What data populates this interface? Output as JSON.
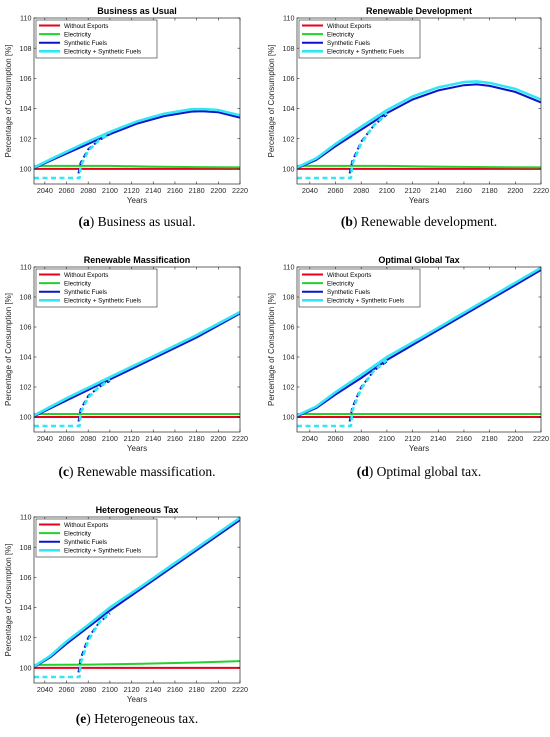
{
  "legend_labels": [
    "Without Exports",
    "Electricity",
    "Synthetic Fuels",
    "Electricity + Synthetic Fuels"
  ],
  "series_colors": {
    "Without Exports": "#e8001c",
    "Electricity": "#22d12e",
    "Synthetic Fuels": "#0a14c8",
    "Electricity + Synthetic Fuels": "#33e6f5"
  },
  "chart_data": [
    {
      "type": "line",
      "title": "Business as Usual",
      "xlabel": "Years",
      "ylabel": "Percentage of Consumption [%]",
      "xlim": [
        2030,
        2220
      ],
      "ylim": [
        99,
        110
      ],
      "xticks": [
        2040,
        2060,
        2080,
        2100,
        2120,
        2140,
        2160,
        2180,
        2200,
        2220
      ],
      "yticks": [
        100,
        102,
        104,
        106,
        108,
        110
      ],
      "caption_tag": "(a)",
      "caption_text": "Business as usual.",
      "series": [
        {
          "name": "Without Exports",
          "style": "solid",
          "x": [
            2030,
            2220
          ],
          "y": [
            100.0,
            100.0
          ]
        },
        {
          "name": "Electricity",
          "style": "solid",
          "x": [
            2030,
            2060,
            2100,
            2140,
            2180,
            2220
          ],
          "y": [
            100.2,
            100.2,
            100.2,
            100.15,
            100.12,
            100.1
          ]
        },
        {
          "name": "Synthetic Fuels",
          "style": "solid",
          "x": [
            2030,
            2050,
            2075,
            2100,
            2125,
            2150,
            2175,
            2185,
            2200,
            2220
          ],
          "y": [
            100.05,
            100.7,
            101.5,
            102.3,
            103.0,
            103.5,
            103.8,
            103.82,
            103.75,
            103.4
          ]
        },
        {
          "name": "Synthetic Fuels",
          "style": "dashed",
          "x": [
            2071,
            2073,
            2080,
            2090,
            2100
          ],
          "y": [
            99.7,
            100.4,
            101.3,
            101.9,
            102.3
          ]
        },
        {
          "name": "Electricity + Synthetic Fuels",
          "style": "solid",
          "x": [
            2030,
            2050,
            2075,
            2100,
            2125,
            2150,
            2175,
            2185,
            2200,
            2220
          ],
          "y": [
            100.1,
            100.8,
            101.65,
            102.45,
            103.15,
            103.65,
            103.95,
            103.97,
            103.9,
            103.55
          ]
        },
        {
          "name": "Electricity + Synthetic Fuels",
          "style": "dashed",
          "x": [
            2030,
            2072,
            2073,
            2080,
            2090,
            2100
          ],
          "y": [
            99.4,
            99.4,
            100.2,
            101.2,
            101.9,
            102.4
          ]
        }
      ]
    },
    {
      "type": "line",
      "title": "Renewable Development",
      "xlabel": "Years",
      "ylabel": "Percentage of Consumption [%]",
      "xlim": [
        2030,
        2220
      ],
      "ylim": [
        99,
        110
      ],
      "xticks": [
        2040,
        2060,
        2080,
        2100,
        2120,
        2140,
        2160,
        2180,
        2200,
        2220
      ],
      "yticks": [
        100,
        102,
        104,
        106,
        108,
        110
      ],
      "caption_tag": "(b)",
      "caption_text": "Renewable development.",
      "series": [
        {
          "name": "Without Exports",
          "style": "solid",
          "x": [
            2030,
            2220
          ],
          "y": [
            100.0,
            100.0
          ]
        },
        {
          "name": "Electricity",
          "style": "solid",
          "x": [
            2030,
            2060,
            2100,
            2140,
            2180,
            2220
          ],
          "y": [
            100.2,
            100.2,
            100.2,
            100.15,
            100.12,
            100.1
          ]
        },
        {
          "name": "Synthetic Fuels",
          "style": "solid",
          "x": [
            2030,
            2045,
            2060,
            2080,
            2100,
            2120,
            2140,
            2160,
            2170,
            2180,
            2200,
            2220
          ],
          "y": [
            100.05,
            100.6,
            101.5,
            102.6,
            103.7,
            104.6,
            105.2,
            105.55,
            105.6,
            105.5,
            105.1,
            104.4
          ]
        },
        {
          "name": "Synthetic Fuels",
          "style": "dashed",
          "x": [
            2071,
            2073,
            2080,
            2090,
            2100
          ],
          "y": [
            99.7,
            100.5,
            101.8,
            102.9,
            103.6
          ]
        },
        {
          "name": "Electricity + Synthetic Fuels",
          "style": "solid",
          "x": [
            2030,
            2045,
            2060,
            2080,
            2100,
            2120,
            2140,
            2160,
            2170,
            2180,
            2200,
            2220
          ],
          "y": [
            100.1,
            100.7,
            101.65,
            102.8,
            103.9,
            104.8,
            105.4,
            105.75,
            105.8,
            105.7,
            105.3,
            104.6
          ]
        },
        {
          "name": "Electricity + Synthetic Fuels",
          "style": "dashed",
          "x": [
            2030,
            2072,
            2073,
            2080,
            2090,
            2100
          ],
          "y": [
            99.4,
            99.4,
            100.3,
            101.7,
            102.9,
            103.7
          ]
        }
      ]
    },
    {
      "type": "line",
      "title": "Renewable Massification",
      "xlabel": "Years",
      "ylabel": "Percentage of Consumption [%]",
      "xlim": [
        2030,
        2220
      ],
      "ylim": [
        99,
        110
      ],
      "xticks": [
        2040,
        2060,
        2080,
        2100,
        2120,
        2140,
        2160,
        2180,
        2200,
        2220
      ],
      "yticks": [
        100,
        102,
        104,
        106,
        108,
        110
      ],
      "caption_tag": "(c)",
      "caption_text": "Renewable massification.",
      "series": [
        {
          "name": "Without Exports",
          "style": "solid",
          "x": [
            2030,
            2220
          ],
          "y": [
            100.0,
            100.0
          ]
        },
        {
          "name": "Electricity",
          "style": "solid",
          "x": [
            2030,
            2060,
            2100,
            2140,
            2180,
            2220
          ],
          "y": [
            100.2,
            100.2,
            100.2,
            100.2,
            100.2,
            100.2
          ]
        },
        {
          "name": "Synthetic Fuels",
          "style": "solid",
          "x": [
            2030,
            2060,
            2100,
            2140,
            2180,
            2220
          ],
          "y": [
            100.05,
            101.1,
            102.5,
            103.9,
            105.3,
            106.9
          ]
        },
        {
          "name": "Synthetic Fuels",
          "style": "dashed",
          "x": [
            2071,
            2073,
            2080,
            2090,
            2100
          ],
          "y": [
            99.7,
            100.5,
            101.4,
            102.0,
            102.4
          ]
        },
        {
          "name": "Electricity + Synthetic Fuels",
          "style": "solid",
          "x": [
            2030,
            2060,
            2100,
            2140,
            2180,
            2220
          ],
          "y": [
            100.1,
            101.25,
            102.65,
            104.05,
            105.45,
            107.0
          ]
        },
        {
          "name": "Electricity + Synthetic Fuels",
          "style": "dashed",
          "x": [
            2030,
            2072,
            2073,
            2080,
            2090,
            2100
          ],
          "y": [
            99.4,
            99.4,
            100.3,
            101.3,
            102.0,
            102.5
          ]
        }
      ]
    },
    {
      "type": "line",
      "title": "Optimal Global Tax",
      "xlabel": "Years",
      "ylabel": "Percentage of Consumption [%]",
      "xlim": [
        2030,
        2220
      ],
      "ylim": [
        99,
        110
      ],
      "xticks": [
        2040,
        2060,
        2080,
        2100,
        2120,
        2140,
        2160,
        2180,
        2200,
        2220
      ],
      "yticks": [
        100,
        102,
        104,
        106,
        108,
        110
      ],
      "caption_tag": "(d)",
      "caption_text": "Optimal global tax.",
      "series": [
        {
          "name": "Without Exports",
          "style": "solid",
          "x": [
            2030,
            2220
          ],
          "y": [
            100.0,
            100.0
          ]
        },
        {
          "name": "Electricity",
          "style": "solid",
          "x": [
            2030,
            2060,
            2100,
            2140,
            2180,
            2220
          ],
          "y": [
            100.2,
            100.2,
            100.2,
            100.2,
            100.2,
            100.2
          ]
        },
        {
          "name": "Synthetic Fuels",
          "style": "solid",
          "x": [
            2030,
            2045,
            2060,
            2080,
            2100,
            2130,
            2160,
            2190,
            2220
          ],
          "y": [
            100.05,
            100.6,
            101.5,
            102.6,
            103.8,
            105.3,
            106.8,
            108.3,
            109.8
          ]
        },
        {
          "name": "Synthetic Fuels",
          "style": "dashed",
          "x": [
            2071,
            2073,
            2080,
            2090,
            2100
          ],
          "y": [
            99.7,
            100.6,
            102.0,
            103.1,
            103.7
          ]
        },
        {
          "name": "Electricity + Synthetic Fuels",
          "style": "solid",
          "x": [
            2030,
            2045,
            2060,
            2080,
            2100,
            2130,
            2160,
            2190,
            2220
          ],
          "y": [
            100.1,
            100.7,
            101.65,
            102.8,
            104.0,
            105.45,
            106.95,
            108.45,
            109.95
          ]
        },
        {
          "name": "Electricity + Synthetic Fuels",
          "style": "dashed",
          "x": [
            2030,
            2072,
            2073,
            2080,
            2090,
            2100
          ],
          "y": [
            99.4,
            99.4,
            100.4,
            101.9,
            103.1,
            103.8
          ]
        }
      ]
    },
    {
      "type": "line",
      "title": "Heterogeneous Tax",
      "xlabel": "Years",
      "ylabel": "Percentage of Consumption [%]",
      "xlim": [
        2030,
        2220
      ],
      "ylim": [
        99,
        110
      ],
      "xticks": [
        2040,
        2060,
        2080,
        2100,
        2120,
        2140,
        2160,
        2180,
        2200,
        2220
      ],
      "yticks": [
        100,
        102,
        104,
        106,
        108,
        110
      ],
      "caption_tag": "(e)",
      "caption_text": "Heterogeneous tax.",
      "series": [
        {
          "name": "Without Exports",
          "style": "solid",
          "x": [
            2030,
            2220
          ],
          "y": [
            100.0,
            100.0
          ]
        },
        {
          "name": "Electricity",
          "style": "solid",
          "x": [
            2030,
            2080,
            2130,
            2180,
            2220
          ],
          "y": [
            100.2,
            100.22,
            100.28,
            100.36,
            100.45
          ]
        },
        {
          "name": "Synthetic Fuels",
          "style": "solid",
          "x": [
            2030,
            2045,
            2060,
            2080,
            2100,
            2130,
            2160,
            2190,
            2220
          ],
          "y": [
            100.05,
            100.7,
            101.6,
            102.7,
            103.8,
            105.3,
            106.8,
            108.3,
            109.8
          ]
        },
        {
          "name": "Synthetic Fuels",
          "style": "dashed",
          "x": [
            2071,
            2073,
            2080,
            2090,
            2100
          ],
          "y": [
            99.7,
            100.6,
            102.0,
            103.0,
            103.6
          ]
        },
        {
          "name": "Electricity + Synthetic Fuels",
          "style": "solid",
          "x": [
            2030,
            2045,
            2060,
            2080,
            2100,
            2130,
            2160,
            2190,
            2220
          ],
          "y": [
            100.1,
            100.8,
            101.75,
            102.85,
            104.0,
            105.45,
            106.95,
            108.45,
            109.95
          ]
        },
        {
          "name": "Electricity + Synthetic Fuels",
          "style": "dashed",
          "x": [
            2030,
            2072,
            2073,
            2080,
            2090,
            2100
          ],
          "y": [
            99.4,
            99.4,
            100.3,
            101.8,
            103.0,
            103.7
          ]
        }
      ]
    }
  ]
}
